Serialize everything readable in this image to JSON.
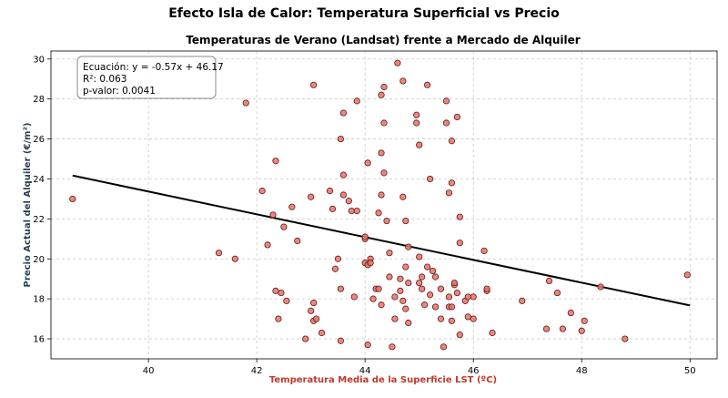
{
  "chart_data": {
    "type": "scatter",
    "suptitle": "Efecto Isla de Calor: Temperatura Superficial vs Precio",
    "title": "Temperaturas de Verano (Landsat) frente a Mercado de Alquiler",
    "xlabel": "Temperatura Media de la Superficie LST (ºC)",
    "ylabel": "Precio Actual del Alquiler (€/m²)",
    "xlim": [
      38.2,
      50.5
    ],
    "ylim": [
      15.0,
      30.4
    ],
    "xticks": [
      40,
      42,
      44,
      46,
      48,
      50
    ],
    "yticks": [
      16,
      18,
      20,
      22,
      24,
      26,
      28,
      30
    ],
    "grid": true,
    "colors": {
      "points": "#e8716a",
      "point_edge": "#5a1a14",
      "line": "#000000",
      "xlabel": "#c0392b",
      "ylabel": "#2c3e50"
    },
    "annotation": {
      "lines": [
        "Ecuación: y = -0.57x + 46.17",
        "R²: 0.063",
        "p-valor: 0.0041"
      ],
      "placement": "top-left"
    },
    "regression": {
      "slope": -0.57,
      "intercept": 46.17,
      "x_range": [
        38.6,
        50.0
      ]
    },
    "points": [
      [
        38.6,
        23.0
      ],
      [
        41.3,
        20.3
      ],
      [
        41.6,
        20.0
      ],
      [
        41.8,
        27.8
      ],
      [
        42.1,
        23.4
      ],
      [
        42.2,
        20.7
      ],
      [
        42.3,
        22.2
      ],
      [
        42.35,
        24.9
      ],
      [
        42.35,
        18.4
      ],
      [
        42.4,
        17.0
      ],
      [
        42.45,
        18.3
      ],
      [
        42.5,
        21.6
      ],
      [
        42.55,
        17.9
      ],
      [
        42.65,
        22.6
      ],
      [
        42.75,
        20.9
      ],
      [
        42.9,
        16.0
      ],
      [
        43.0,
        23.1
      ],
      [
        43.0,
        17.4
      ],
      [
        43.05,
        16.9
      ],
      [
        43.05,
        17.8
      ],
      [
        43.1,
        17.0
      ],
      [
        43.2,
        16.3
      ],
      [
        43.35,
        23.4
      ],
      [
        43.4,
        22.5
      ],
      [
        43.45,
        19.5
      ],
      [
        43.5,
        20.0
      ],
      [
        43.55,
        18.5
      ],
      [
        43.6,
        23.2
      ],
      [
        43.6,
        24.2
      ],
      [
        43.6,
        27.3
      ],
      [
        43.55,
        26.0
      ],
      [
        43.7,
        22.9
      ],
      [
        43.75,
        22.4
      ],
      [
        43.8,
        18.1
      ],
      [
        43.85,
        22.4
      ],
      [
        43.85,
        27.9
      ],
      [
        43.05,
        28.7
      ],
      [
        43.55,
        15.9
      ],
      [
        44.0,
        21.0
      ],
      [
        44.0,
        21.1
      ],
      [
        44.0,
        19.8
      ],
      [
        44.05,
        19.7
      ],
      [
        44.05,
        24.8
      ],
      [
        44.05,
        15.7
      ],
      [
        44.1,
        20.0
      ],
      [
        44.1,
        19.8
      ],
      [
        44.15,
        18.0
      ],
      [
        44.2,
        18.5
      ],
      [
        44.25,
        18.5
      ],
      [
        44.25,
        22.3
      ],
      [
        44.3,
        23.2
      ],
      [
        44.3,
        17.7
      ],
      [
        44.3,
        25.3
      ],
      [
        44.35,
        24.3
      ],
      [
        44.35,
        26.8
      ],
      [
        44.35,
        28.6
      ],
      [
        44.3,
        28.2
      ],
      [
        44.4,
        21.9
      ],
      [
        44.45,
        19.1
      ],
      [
        44.45,
        20.3
      ],
      [
        44.5,
        15.6
      ],
      [
        44.55,
        18.1
      ],
      [
        44.55,
        17.0
      ],
      [
        44.6,
        29.8
      ],
      [
        44.65,
        18.4
      ],
      [
        44.65,
        19.0
      ],
      [
        44.7,
        23.1
      ],
      [
        44.7,
        28.9
      ],
      [
        44.7,
        17.9
      ],
      [
        44.75,
        19.6
      ],
      [
        44.75,
        21.9
      ],
      [
        44.75,
        17.5
      ],
      [
        44.8,
        18.8
      ],
      [
        44.8,
        20.6
      ],
      [
        44.8,
        16.8
      ],
      [
        44.95,
        26.8
      ],
      [
        44.95,
        27.2
      ],
      [
        45.0,
        25.7
      ],
      [
        45.0,
        18.8
      ],
      [
        45.05,
        19.1
      ],
      [
        45.05,
        18.5
      ],
      [
        45.0,
        20.1
      ],
      [
        45.1,
        17.7
      ],
      [
        45.15,
        28.7
      ],
      [
        45.15,
        19.6
      ],
      [
        45.2,
        24.0
      ],
      [
        45.2,
        18.2
      ],
      [
        45.25,
        19.4
      ],
      [
        45.3,
        17.6
      ],
      [
        45.3,
        19.1
      ],
      [
        45.4,
        18.5
      ],
      [
        45.4,
        17.0
      ],
      [
        45.45,
        15.6
      ],
      [
        45.5,
        27.9
      ],
      [
        45.5,
        26.8
      ],
      [
        45.55,
        18.1
      ],
      [
        45.55,
        17.6
      ],
      [
        45.55,
        23.3
      ],
      [
        45.6,
        25.9
      ],
      [
        45.6,
        23.8
      ],
      [
        45.6,
        17.6
      ],
      [
        45.6,
        16.9
      ],
      [
        45.65,
        18.7
      ],
      [
        45.65,
        18.8
      ],
      [
        45.7,
        27.1
      ],
      [
        45.7,
        18.3
      ],
      [
        45.75,
        20.8
      ],
      [
        45.75,
        22.1
      ],
      [
        45.75,
        16.2
      ],
      [
        45.85,
        17.9
      ],
      [
        45.9,
        18.1
      ],
      [
        45.9,
        17.1
      ],
      [
        46.0,
        18.1
      ],
      [
        46.0,
        17.0
      ],
      [
        46.2,
        20.4
      ],
      [
        46.25,
        18.4
      ],
      [
        46.25,
        18.5
      ],
      [
        46.35,
        16.3
      ],
      [
        46.9,
        17.9
      ],
      [
        47.35,
        16.5
      ],
      [
        47.4,
        18.9
      ],
      [
        47.55,
        18.3
      ],
      [
        47.65,
        16.5
      ],
      [
        47.8,
        17.3
      ],
      [
        48.0,
        16.4
      ],
      [
        48.05,
        16.9
      ],
      [
        48.35,
        18.6
      ],
      [
        48.8,
        16.0
      ],
      [
        49.95,
        19.2
      ]
    ]
  }
}
